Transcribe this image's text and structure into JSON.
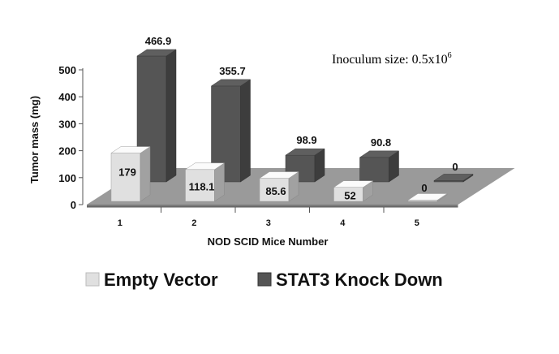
{
  "chart_data": {
    "type": "bar",
    "categories": [
      "1",
      "2",
      "3",
      "4",
      "5"
    ],
    "series": [
      {
        "name": "Empty Vector",
        "values": [
          179,
          118.1,
          85.6,
          52,
          0
        ],
        "color": "#e0e0e0"
      },
      {
        "name": "STAT3 Knock Down",
        "values": [
          466.9,
          355.7,
          98.9,
          90.8,
          0
        ],
        "color": "#555555"
      }
    ],
    "data_labels": {
      "Empty Vector": [
        "179",
        "118.1",
        "85.6",
        "52",
        "0"
      ],
      "STAT3 Knock Down": [
        "466.9",
        "355.7",
        "98.9",
        "90.8",
        "0"
      ]
    },
    "title": "",
    "xlabel": "NOD SCID Mice Number",
    "ylabel": "Tumor mass (mg)",
    "ylim": [
      0,
      500
    ],
    "yticks": [
      "0",
      "100",
      "200",
      "300",
      "400",
      "500"
    ],
    "annotation": {
      "text": "Inoculum size: 0.5x10",
      "superscript": "6"
    },
    "legend": {
      "placement": "bottom",
      "entries": [
        "Empty Vector",
        "STAT3 Knock Down"
      ]
    },
    "grid": false,
    "style": "3d-clustered-column"
  }
}
